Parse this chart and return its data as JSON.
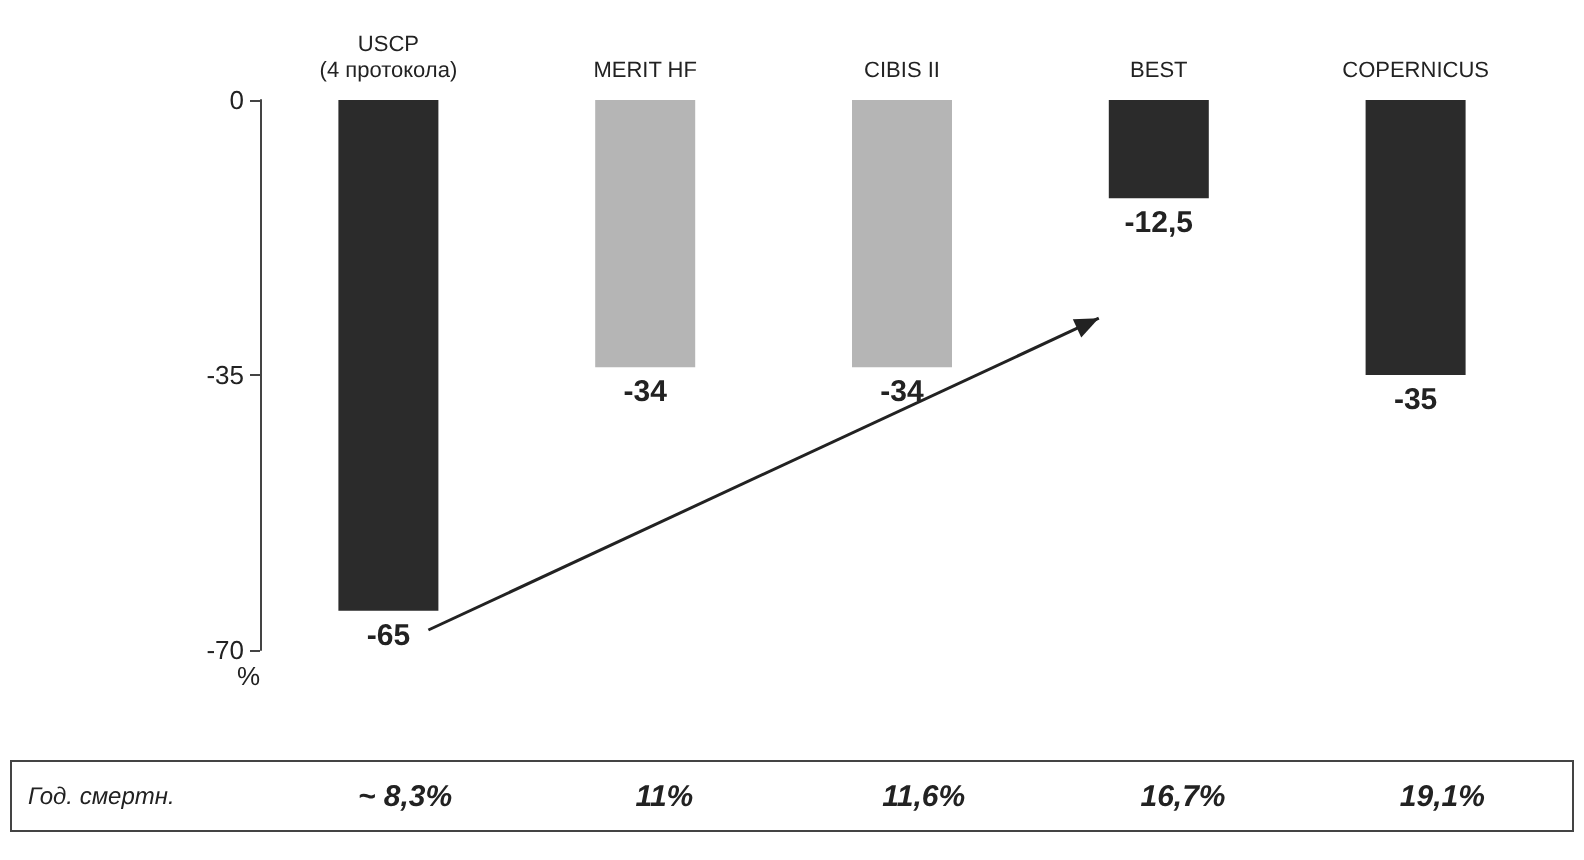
{
  "chart_data": {
    "type": "bar",
    "categories": [
      "USCP\n(4 протокола)",
      "MERIT HF",
      "CIBIS II",
      "BEST",
      "COPERNICUS"
    ],
    "values": [
      -65,
      -34,
      -34,
      -12.5,
      -35
    ],
    "colors": [
      "#2b2b2b",
      "#b5b5b5",
      "#b5b5b5",
      "#2b2b2b",
      "#2b2b2b"
    ],
    "value_labels": [
      "-65",
      "-34",
      "-34",
      "-12,5",
      "-35"
    ],
    "ylabel": "%",
    "ylim": [
      -70,
      0
    ],
    "yticks": [
      0,
      -35,
      -70
    ],
    "grid": false,
    "annotations": [
      "Год. смертн.",
      "~ 8,3%",
      "11%",
      "11,6%",
      "16,7%",
      "19,1%"
    ]
  }
}
